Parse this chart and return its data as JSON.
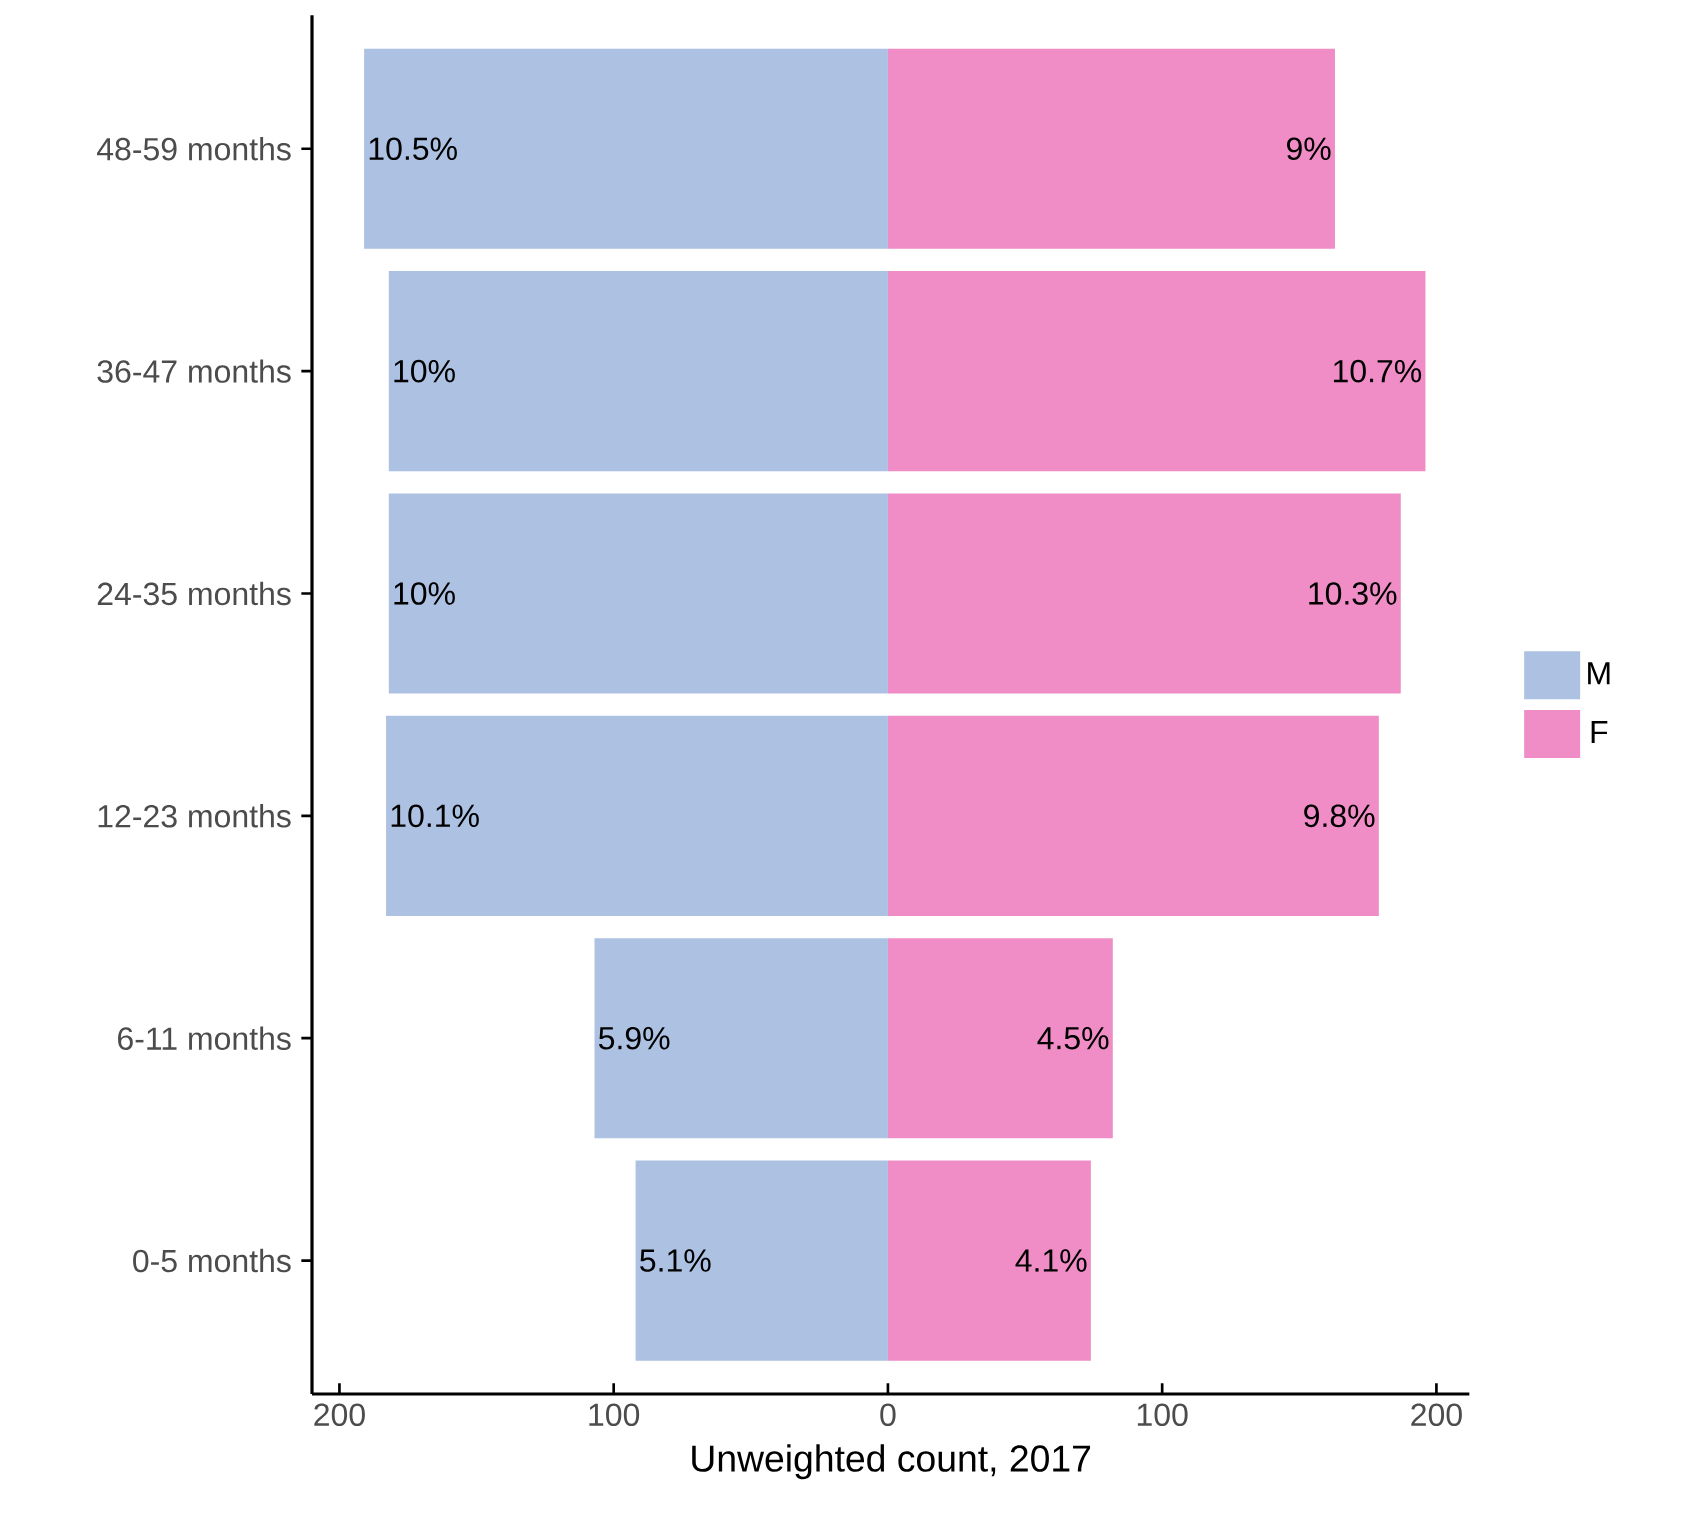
{
  "chart_data": {
    "type": "bar",
    "orientation": "horizontal",
    "xlabel": "Unweighted count, 2017",
    "categories": [
      "48-59 months",
      "36-47 months",
      "24-35 months",
      "12-23 months",
      "6-11 months",
      "0-5 months"
    ],
    "series": [
      {
        "name": "M",
        "color": "#adc1e2",
        "values": [
          -191,
          -182,
          -182,
          -183,
          -107,
          -92
        ]
      },
      {
        "name": "F",
        "color": "#f08dc6",
        "values": [
          163,
          196,
          187,
          179,
          82,
          74
        ]
      }
    ],
    "annotations": [
      {
        "text": "10.5%",
        "x": -191,
        "y": "48-59 months"
      },
      {
        "text": "10%",
        "x": -182,
        "y": "36-47 months"
      },
      {
        "text": "10%",
        "x": -182,
        "y": "24-35 months"
      },
      {
        "text": "10.1%",
        "x": -183,
        "y": "12-23 months"
      },
      {
        "text": "5.9%",
        "x": -107,
        "y": "6-11 months"
      },
      {
        "text": "5.1%",
        "x": -92,
        "y": "0-5 months"
      },
      {
        "text": "9%",
        "x": 163,
        "y": "48-59 months"
      },
      {
        "text": "10.7%",
        "x": 196,
        "y": "36-47 months"
      },
      {
        "text": "10.3%",
        "x": 187,
        "y": "24-35 months"
      },
      {
        "text": "9.8%",
        "x": 179,
        "y": "12-23 months"
      },
      {
        "text": "4.5%",
        "x": 82,
        "y": "6-11 months"
      },
      {
        "text": "4.1%",
        "x": 74,
        "y": "0-5 months"
      }
    ],
    "xlim": [
      -210,
      212
    ],
    "xticks": [
      {
        "value": -200,
        "label": "200"
      },
      {
        "value": -100,
        "label": "100"
      },
      0,
      100,
      {
        "value": 200,
        "label": "200"
      }
    ],
    "stacked": true,
    "grid": false,
    "legend": "right"
  }
}
